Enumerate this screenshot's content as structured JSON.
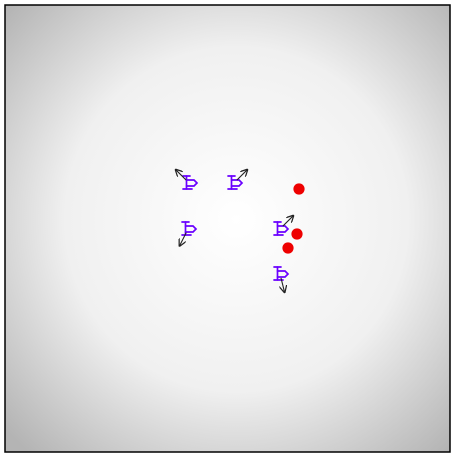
{
  "scene": {
    "colors": {
      "background_center": "#ffffff",
      "background_edge": "#b4b4b4",
      "border": "#000000",
      "agent": "#6a00ff",
      "heading_arrow": "#222222",
      "target": "#ee0000"
    },
    "agents": [
      {
        "id": "agent-1",
        "heading": "up-left"
      },
      {
        "id": "agent-2",
        "heading": "up-right"
      },
      {
        "id": "agent-3",
        "heading": "down-left"
      },
      {
        "id": "agent-4",
        "heading": "up-right"
      },
      {
        "id": "agent-5",
        "heading": "down"
      }
    ],
    "targets": [
      {
        "id": "target-1"
      },
      {
        "id": "target-2"
      },
      {
        "id": "target-3"
      }
    ]
  }
}
